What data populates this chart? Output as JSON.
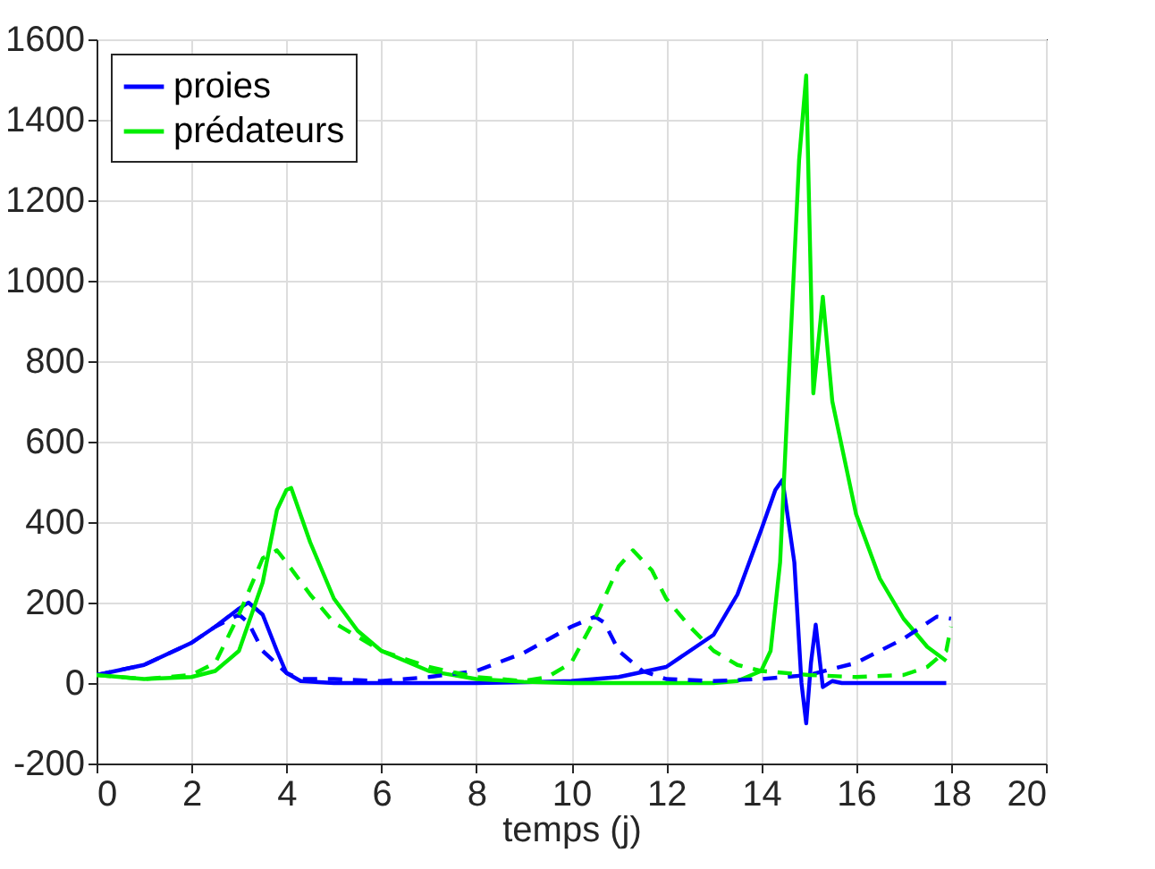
{
  "chart_data": {
    "type": "line",
    "xlabel": "temps (j)",
    "xlim": [
      0,
      20
    ],
    "xticks": [
      0,
      2,
      4,
      6,
      8,
      10,
      12,
      14,
      16,
      18,
      20
    ],
    "ylim": [
      -200,
      1600
    ],
    "yticks": [
      -200,
      0,
      200,
      400,
      600,
      800,
      1000,
      1200,
      1400,
      1600
    ],
    "grid": true,
    "legend": "top left",
    "series": [
      {
        "name": "proies",
        "color": "#0000ff",
        "line_style": "solid",
        "x": [
          0,
          1,
          2,
          2.5,
          3,
          3.2,
          3.5,
          3.8,
          4,
          4.3,
          5,
          6,
          7,
          8,
          9,
          10,
          11,
          12,
          13,
          13.5,
          14,
          14.3,
          14.45,
          14.7,
          14.85,
          14.95,
          15.05,
          15.15,
          15.3,
          15.5,
          15.7,
          17.9
        ],
        "values": [
          20,
          45,
          100,
          140,
          185,
          200,
          170,
          80,
          25,
          5,
          0,
          0,
          0,
          0,
          2,
          5,
          15,
          40,
          120,
          220,
          380,
          480,
          505,
          300,
          0,
          -100,
          50,
          145,
          -10,
          5,
          0,
          0
        ]
      },
      {
        "name": "prédateurs",
        "color": "#00ee00",
        "line_style": "solid",
        "x": [
          0,
          1,
          2,
          2.5,
          3,
          3.5,
          3.8,
          4,
          4.1,
          4.5,
          5,
          5.5,
          6,
          7,
          8,
          9,
          10,
          12,
          13,
          13.5,
          14,
          14.2,
          14.4,
          14.6,
          14.8,
          14.95,
          15.1,
          15.3,
          15.5,
          16,
          16.5,
          17,
          17.5,
          17.9
        ],
        "values": [
          20,
          10,
          15,
          30,
          80,
          250,
          430,
          480,
          485,
          350,
          210,
          130,
          80,
          30,
          10,
          3,
          0,
          0,
          0,
          5,
          30,
          80,
          300,
          800,
          1300,
          1510,
          720,
          960,
          700,
          420,
          260,
          160,
          90,
          55
        ]
      },
      {
        "color": "#0000ff",
        "line_style": "dashed",
        "x": [
          0,
          1,
          2,
          2.5,
          3,
          3.2,
          3.5,
          4,
          4.3,
          5,
          6,
          7,
          8,
          9,
          10,
          10.5,
          10.7,
          11,
          11.5,
          12,
          13,
          14,
          15,
          16,
          17,
          17.7,
          18
        ],
        "values": [
          20,
          45,
          100,
          140,
          170,
          150,
          80,
          25,
          10,
          10,
          5,
          15,
          30,
          75,
          140,
          165,
          150,
          80,
          30,
          10,
          5,
          10,
          20,
          50,
          110,
          165,
          160
        ]
      },
      {
        "color": "#00ee00",
        "line_style": "dashed",
        "x": [
          0,
          1,
          2,
          2.5,
          3,
          3.5,
          3.8,
          4,
          4.5,
          5,
          6,
          7,
          8,
          9,
          9.5,
          10,
          10.5,
          11,
          11.3,
          11.7,
          12,
          12.5,
          13,
          13.5,
          14,
          15,
          16,
          17,
          17.5,
          17.9,
          18
        ],
        "values": [
          20,
          10,
          20,
          50,
          170,
          310,
          330,
          300,
          220,
          150,
          80,
          40,
          15,
          5,
          15,
          50,
          160,
          290,
          330,
          280,
          210,
          140,
          80,
          45,
          30,
          20,
          15,
          20,
          40,
          80,
          140
        ]
      }
    ]
  }
}
